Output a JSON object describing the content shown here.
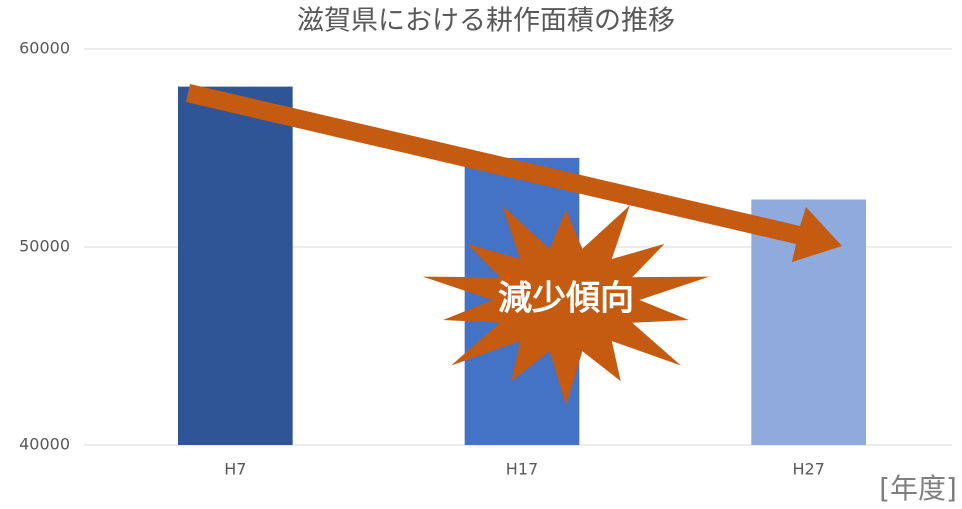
{
  "chart_data": {
    "type": "bar",
    "title": "滋賀県における耕作面積の推移",
    "categories": [
      "H7",
      "H17",
      "H27"
    ],
    "values": [
      58100,
      54500,
      52400
    ],
    "colors": [
      "#2f5597",
      "#4472c4",
      "#8faadc"
    ],
    "ylim": [
      40000,
      60000
    ],
    "yticks": [
      40000,
      50000,
      60000
    ],
    "grid": true,
    "annotations": [
      "減少傾向"
    ],
    "x_unit_label": "[年度]"
  }
}
